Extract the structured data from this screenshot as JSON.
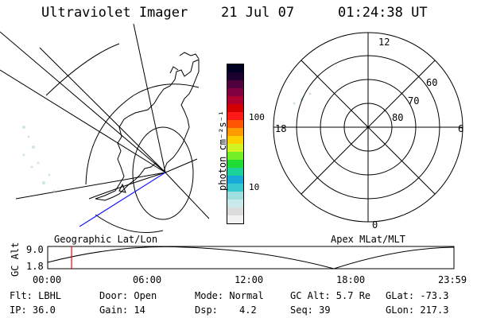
{
  "header": {
    "title": "Ultraviolet Imager",
    "date": "21 Jul 07",
    "time": "01:24:38 UT"
  },
  "geo_panel": {
    "caption": "Geographic Lat/Lon"
  },
  "colorbar": {
    "unit_label": "photon cm⁻²s⁻¹",
    "tick_100": "100",
    "tick_10": "10",
    "colors": [
      "#f2f2f2",
      "#dcdcdc",
      "#c9e9ea",
      "#9fdfe0",
      "#37c9d0",
      "#17a9d8",
      "#1bd39a",
      "#1fdd35",
      "#74ef26",
      "#d2f322",
      "#ffd000",
      "#ff9a00",
      "#ff5400",
      "#ff1a1a",
      "#d40000",
      "#b00030",
      "#800040",
      "#50003c",
      "#1c0030",
      "#000024"
    ]
  },
  "polar_panel": {
    "caption": "Apex MLat/MLT",
    "mlt_12": "12",
    "mlt_18": "18",
    "mlt_6": "6",
    "mlt_0": "0",
    "lat_60": "60",
    "lat_70": "70",
    "lat_80": "80"
  },
  "altitude_plot": {
    "ylabel": "GC Alt",
    "y_top": "9.0",
    "y_bottom": "1.8",
    "x_ticks": [
      "00:00",
      "06:00",
      "12:00",
      "18:00",
      "23:59"
    ],
    "current_time_marker_hours": 1.41,
    "marker_color": "#ff0000"
  },
  "status": {
    "flt": "Flt: LBHL",
    "door": "Door: Open",
    "mode": "Mode: Normal",
    "gc_alt": "GC Alt: 5.7 Re",
    "glat": "GLat: -73.3",
    "ip": "IP: 36.0",
    "gain": "Gain: 14",
    "dsp_label": "Dsp:",
    "dsp_value": "4.2",
    "seq": "Seq: 39",
    "glon": "GLon: 217.3"
  }
}
